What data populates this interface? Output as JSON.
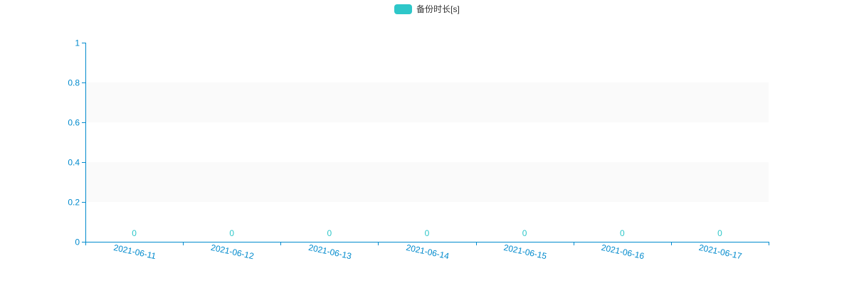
{
  "chart_data": {
    "type": "bar",
    "categories": [
      "2021-06-11",
      "2021-06-12",
      "2021-06-13",
      "2021-06-14",
      "2021-06-15",
      "2021-06-16",
      "2021-06-17"
    ],
    "series": [
      {
        "name": "备份时长[s]",
        "values": [
          0,
          0,
          0,
          0,
          0,
          0,
          0
        ]
      }
    ],
    "data_labels": [
      "0",
      "0",
      "0",
      "0",
      "0",
      "0",
      "0"
    ],
    "y_ticks": [
      "0",
      "0.2",
      "0.4",
      "0.6",
      "0.8",
      "1"
    ],
    "ylim": [
      0,
      1
    ],
    "legend_position": "top-center",
    "split_area": true,
    "xlabel": "",
    "ylabel": ""
  },
  "legend": {
    "label": "备份时长[s]"
  },
  "colors": {
    "series": "#2ec7c9",
    "axis": "#008acd",
    "band": "#fafafa",
    "legend_text": "#333333"
  }
}
